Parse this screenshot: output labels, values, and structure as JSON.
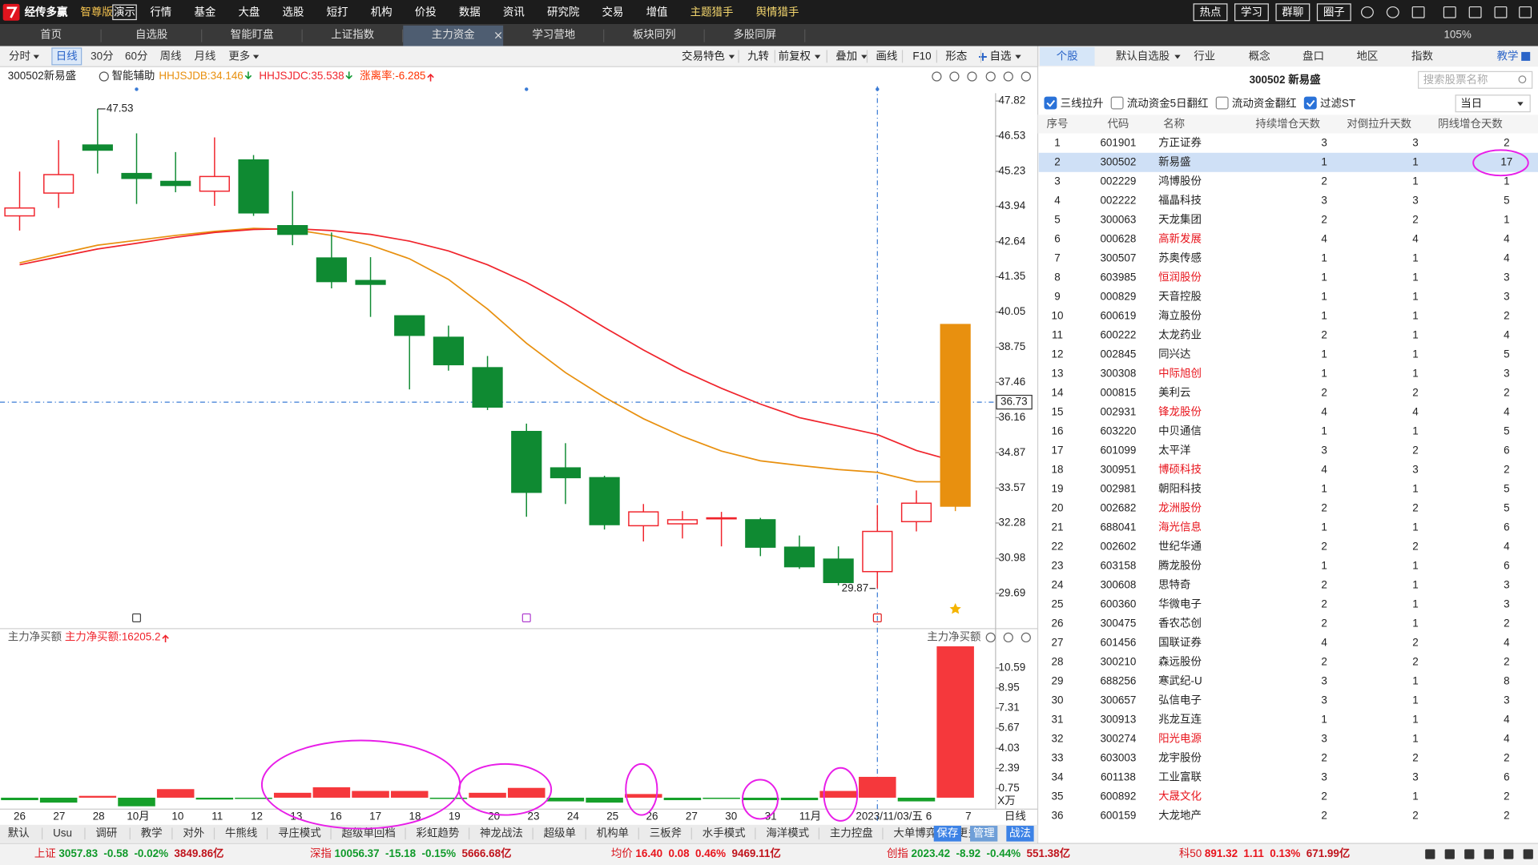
{
  "menu": {
    "logo": "经传多赢",
    "edition": "智尊版",
    "demo": "演示",
    "items": [
      "行情",
      "基金",
      "大盘",
      "选股",
      "短打",
      "机构",
      "价投",
      "数据",
      "资讯",
      "研究院",
      "交易",
      "增值",
      "主题猎手",
      "舆情猎手"
    ],
    "buttons": [
      "热点",
      "学习",
      "群聊",
      "圈子"
    ]
  },
  "tabs": {
    "items": [
      "首页",
      "自选股",
      "智能盯盘",
      "上证指数",
      "主力资金",
      "学习营地",
      "板块同列",
      "多股同屏"
    ],
    "active": 4,
    "zoom": "105%"
  },
  "toolbar": {
    "left": [
      "分时",
      "日线",
      "30分",
      "60分",
      "周线",
      "月线",
      "更多"
    ],
    "active": 1,
    "right": [
      "交易特色",
      "九转",
      "前复权",
      "叠加",
      "画线",
      "F10",
      "形态",
      "自选"
    ]
  },
  "chart_data": [
    {
      "type": "candlestick",
      "stock": "300502新易盛",
      "assist": "智能辅助",
      "categories": [
        "26",
        "27",
        "28",
        "10月",
        "10",
        "11",
        "12",
        "13",
        "16",
        "17",
        "18",
        "19",
        "20",
        "23",
        "24",
        "25",
        "26",
        "27",
        "30",
        "31",
        "11月",
        null,
        "2023/11/03/五",
        "6",
        "7"
      ],
      "open": [
        43.59,
        44.43,
        46.2,
        45.15,
        44.86,
        44.5,
        45.65,
        43.23,
        42.04,
        41.21,
        39.91,
        39.12,
        38.0,
        35.65,
        34.31,
        33.95,
        32.18,
        32.25,
        32.45,
        32.4,
        31.39,
        30.95,
        30.49,
        32.33,
        32.9
      ],
      "high": [
        45.22,
        46.38,
        47.53,
        46.63,
        45.94,
        46.48,
        45.83,
        44.5,
        42.98,
        42.07,
        39.91,
        39.55,
        38.43,
        35.94,
        35.22,
        34.02,
        32.98,
        32.72,
        32.69,
        32.47,
        31.82,
        31.42,
        32.94,
        33.48,
        39.59
      ],
      "low": [
        43.05,
        43.88,
        45.15,
        44.03,
        44.46,
        43.96,
        43.59,
        42.51,
        40.92,
        39.87,
        37.2,
        37.89,
        36.44,
        32.51,
        32.98,
        32.04,
        31.6,
        31.71,
        31.42,
        31.06,
        30.59,
        29.98,
        29.87,
        31.97,
        32.72
      ],
      "close": [
        43.88,
        45.11,
        46.01,
        44.97,
        44.71,
        45.04,
        43.7,
        42.91,
        41.17,
        41.07,
        39.19,
        38.11,
        36.55,
        33.41,
        33.95,
        32.22,
        32.69,
        32.4,
        32.47,
        31.39,
        30.67,
        30.09,
        31.97,
        33.01,
        39.59
      ],
      "colors": {
        "up": "#f0242c",
        "down": "#0f8a32",
        "last": "#e8900f"
      },
      "series": [
        {
          "label": "HHJSJDB:34.146",
          "trend": "down",
          "color": "#e8900f",
          "values": [
            41.86,
            42.19,
            42.51,
            42.69,
            42.87,
            43.02,
            43.13,
            43.09,
            42.87,
            42.51,
            42.01,
            41.25,
            40.16,
            38.9,
            37.82,
            36.91,
            36.12,
            35.47,
            34.93,
            34.57,
            34.4,
            34.25,
            34.146,
            33.8,
            33.8
          ]
        },
        {
          "label": "HHJSJDC:35.538",
          "trend": "down",
          "color": "#f0242c",
          "values": [
            41.79,
            42.08,
            42.37,
            42.58,
            42.8,
            42.98,
            43.09,
            43.12,
            43.05,
            42.91,
            42.66,
            42.3,
            41.79,
            41.14,
            40.35,
            39.48,
            38.65,
            37.89,
            37.24,
            36.66,
            36.16,
            35.85,
            35.538,
            34.95,
            34.55
          ]
        }
      ],
      "extra_legend": {
        "text": "涨离率:-6.285",
        "trend": "up",
        "color": "#ff3300"
      },
      "ylim": [
        29.69,
        47.82
      ],
      "yticks": [
        47.82,
        46.53,
        45.23,
        43.94,
        42.64,
        41.35,
        40.05,
        38.75,
        37.46,
        36.16,
        34.87,
        33.57,
        32.28,
        30.98,
        29.69
      ],
      "crosshair": {
        "index": 22,
        "price": 36.73
      },
      "x_label": "日线"
    },
    {
      "type": "bar",
      "title": "主力净买额",
      "legend": "主力净买额:16205.2",
      "right_title": "主力净买额",
      "values": [
        -0.2,
        -0.4,
        0.15,
        -0.7,
        0.7,
        -0.15,
        -0.1,
        0.4,
        0.85,
        0.55,
        0.55,
        -0.1,
        0.4,
        0.8,
        -0.3,
        -0.4,
        0.3,
        -0.2,
        -0.1,
        -0.2,
        -0.2,
        0.55,
        1.7,
        -0.3,
        12.35
      ],
      "colors": {
        "up": "#f5383c",
        "down": "#16a02a"
      },
      "ylim": [
        -0.93,
        12.67
      ],
      "yticks": [
        10.59,
        8.95,
        7.31,
        5.67,
        4.03,
        2.39,
        0.75
      ],
      "unit": "X万"
    }
  ],
  "panel": {
    "tabs": [
      "个股",
      "默认自选股",
      "行业",
      "概念",
      "盘口",
      "地区",
      "指数",
      "教学"
    ],
    "active": 0,
    "title": "300502 新易盛",
    "search": "搜索股票名称",
    "filters": [
      {
        "label": "三线拉升",
        "checked": true
      },
      {
        "label": "流动资金5日翻红",
        "checked": false
      },
      {
        "label": "流动资金翻红",
        "checked": false
      },
      {
        "label": "过滤ST",
        "checked": true
      }
    ],
    "period": "当日",
    "columns": [
      "序号",
      "代码",
      "名称",
      "持续增仓天数",
      "对倒拉升天数",
      "阴线增仓天数"
    ],
    "selected_row": 1,
    "rows": [
      [
        1,
        "601901",
        "方正证券",
        3,
        3,
        2
      ],
      [
        2,
        "300502",
        "新易盛",
        1,
        1,
        17
      ],
      [
        3,
        "002229",
        "鸿博股份",
        2,
        1,
        1
      ],
      [
        4,
        "002222",
        "福晶科技",
        3,
        3,
        5
      ],
      [
        5,
        "300063",
        "天龙集团",
        2,
        2,
        1
      ],
      [
        6,
        "000628",
        "高新发展",
        4,
        4,
        4
      ],
      [
        7,
        "300507",
        "苏奥传感",
        1,
        1,
        4
      ],
      [
        8,
        "603985",
        "恒润股份",
        1,
        1,
        3
      ],
      [
        9,
        "000829",
        "天音控股",
        1,
        1,
        3
      ],
      [
        10,
        "600619",
        "海立股份",
        1,
        1,
        2
      ],
      [
        11,
        "600222",
        "太龙药业",
        2,
        1,
        4
      ],
      [
        12,
        "002845",
        "同兴达",
        1,
        1,
        5
      ],
      [
        13,
        "300308",
        "中际旭创",
        1,
        1,
        3
      ],
      [
        14,
        "000815",
        "美利云",
        2,
        2,
        2
      ],
      [
        15,
        "002931",
        "锋龙股份",
        4,
        4,
        4
      ],
      [
        16,
        "603220",
        "中贝通信",
        1,
        1,
        5
      ],
      [
        17,
        "601099",
        "太平洋",
        3,
        2,
        6
      ],
      [
        18,
        "300951",
        "博硕科技",
        4,
        3,
        2
      ],
      [
        19,
        "002981",
        "朝阳科技",
        1,
        1,
        5
      ],
      [
        20,
        "002682",
        "龙洲股份",
        2,
        2,
        5
      ],
      [
        21,
        "688041",
        "海光信息",
        1,
        1,
        6
      ],
      [
        22,
        "002602",
        "世纪华通",
        2,
        2,
        4
      ],
      [
        23,
        "603158",
        "腾龙股份",
        1,
        1,
        6
      ],
      [
        24,
        "300608",
        "思特奇",
        2,
        1,
        3
      ],
      [
        25,
        "600360",
        "华微电子",
        2,
        1,
        3
      ],
      [
        26,
        "300475",
        "香农芯创",
        2,
        1,
        2
      ],
      [
        27,
        "601456",
        "国联证券",
        4,
        2,
        4
      ],
      [
        28,
        "300210",
        "森远股份",
        2,
        2,
        2
      ],
      [
        29,
        "688256",
        "寒武纪-U",
        3,
        1,
        8
      ],
      [
        30,
        "300657",
        "弘信电子",
        3,
        1,
        3
      ],
      [
        31,
        "300913",
        "兆龙互连",
        1,
        1,
        4
      ],
      [
        32,
        "300274",
        "阳光电源",
        3,
        1,
        4
      ],
      [
        33,
        "603003",
        "龙宇股份",
        2,
        2,
        2
      ],
      [
        34,
        "601138",
        "工业富联",
        3,
        3,
        6
      ],
      [
        35,
        "600892",
        "大晟文化",
        2,
        1,
        2
      ],
      [
        36,
        "600159",
        "大龙地产",
        2,
        2,
        2
      ]
    ],
    "red_names": [
      5,
      7,
      12,
      14,
      17,
      19,
      20,
      31,
      34
    ]
  },
  "bottom_tools": {
    "items": [
      "默认",
      "Usu",
      "调研",
      "教学",
      "对外",
      "牛熊线",
      "寻庄模式",
      "超级单回档",
      "彩虹趋势",
      "神龙战法",
      "超级单",
      "机构单",
      "三板斧",
      "水手模式",
      "海洋模式",
      "主力控盘",
      "大单博弈",
      "更多"
    ],
    "actions": [
      "保存",
      "管理",
      "战法"
    ]
  },
  "status": [
    {
      "name": "上证",
      "price": "3057.83",
      "change": "-0.58",
      "pct": "-0.02%",
      "amount": "3849.86亿"
    },
    {
      "name": "深指",
      "price": "10056.37",
      "change": "-15.18",
      "pct": "-0.15%",
      "amount": "5666.68亿"
    },
    {
      "name": "均价",
      "price": "16.40",
      "change": "0.08",
      "pct": "0.46%",
      "amount": "9469.11亿"
    },
    {
      "name": "创指",
      "price": "2023.42",
      "change": "-8.92",
      "pct": "-0.44%",
      "amount": "551.38亿"
    },
    {
      "name": "科50",
      "price": "891.32",
      "change": "1.11",
      "pct": "0.13%",
      "amount": "671.99亿"
    }
  ]
}
